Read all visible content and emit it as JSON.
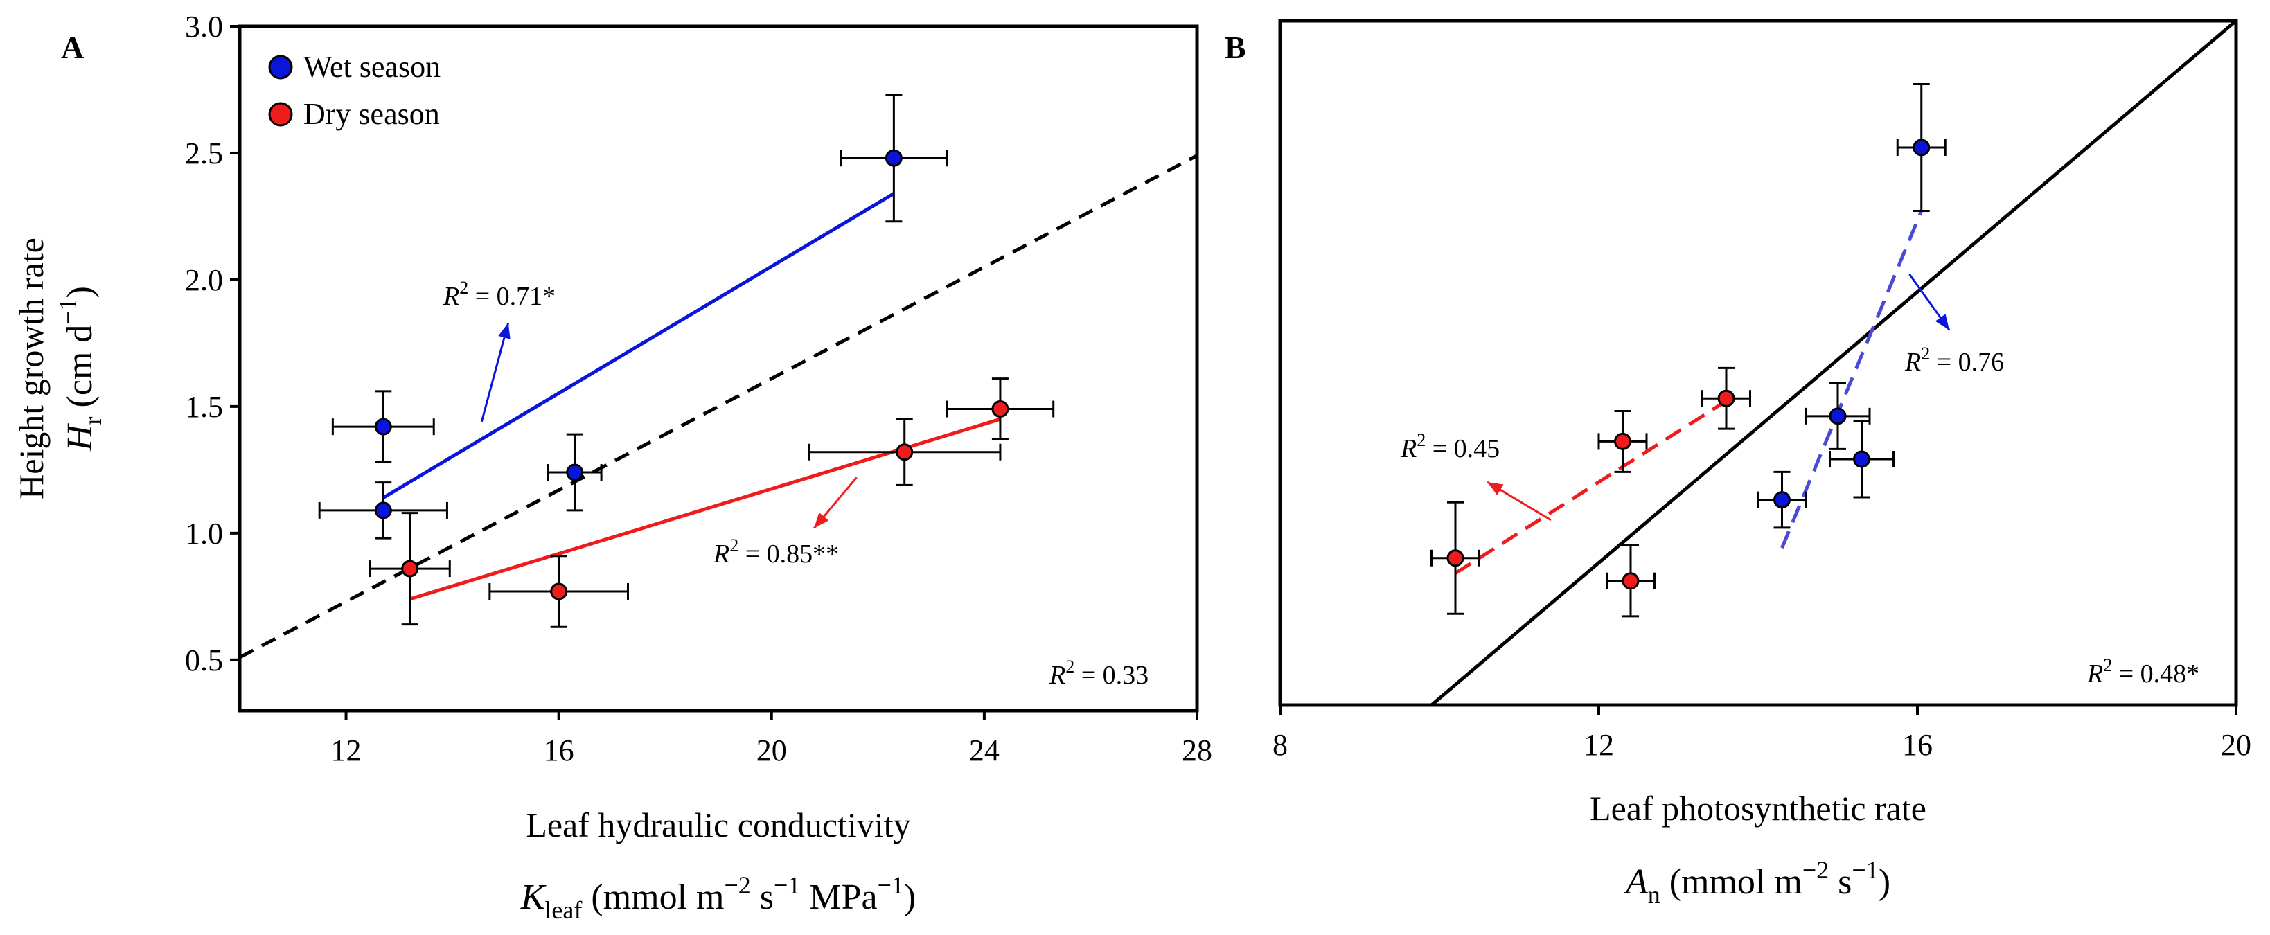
{
  "chart_data": [
    {
      "type": "scatter",
      "panel_label": "A",
      "title": "",
      "xlabel": "Leaf hydraulic conductivity",
      "xlabel_math": {
        "var": "K",
        "sub": "leaf",
        "units_open": " (mmol m",
        "exp1": "−2",
        "mid1": " s",
        "exp2": "−1",
        "mid2": " MPa",
        "exp3": "−1",
        "close": ")"
      },
      "ylabel": "Height growth rate",
      "ylabel_math": {
        "var": "H",
        "sub": "r",
        "units_open": " (cm d",
        "exp1": "−1",
        "close": ")"
      },
      "xlim": [
        10,
        28
      ],
      "ylim": [
        0.3,
        3.0
      ],
      "x_ticks": [
        12,
        16,
        20,
        24,
        28
      ],
      "x_tick_labels": [
        "12",
        "16",
        "20",
        "24",
        "28"
      ],
      "y_ticks": [
        0.5,
        1.0,
        1.5,
        2.0,
        2.5,
        3.0
      ],
      "y_tick_labels": [
        "0.5",
        "1.0",
        "1.5",
        "2.0",
        "2.5",
        "3.0"
      ],
      "legend": {
        "placement": "top-left",
        "entries": [
          {
            "label": "Wet season",
            "color": "#0b14d9"
          },
          {
            "label": "Dry season",
            "color": "#ee1c1c"
          }
        ]
      },
      "series": [
        {
          "name": "Wet season",
          "color": "#0b14d9",
          "points": [
            {
              "x": 22.3,
              "y": 2.48,
              "xerr": 1.0,
              "yerr": 0.25
            },
            {
              "x": 12.7,
              "y": 1.42,
              "xerr": 0.95,
              "yerr": 0.14
            },
            {
              "x": 12.7,
              "y": 1.09,
              "xerr": 1.2,
              "yerr": 0.11
            },
            {
              "x": 16.3,
              "y": 1.24,
              "xerr": 0.5,
              "yerr": 0.15
            }
          ],
          "fit": {
            "x": [
              12.7,
              22.3
            ],
            "y": [
              1.14,
              2.34
            ],
            "style": "solid",
            "color": "#0b14d9"
          }
        },
        {
          "name": "Dry season",
          "color": "#ee1c1c",
          "points": [
            {
              "x": 24.3,
              "y": 1.49,
              "xerr": 1.0,
              "yerr": 0.12
            },
            {
              "x": 22.5,
              "y": 1.32,
              "xerr": 1.8,
              "yerr": 0.13
            },
            {
              "x": 13.2,
              "y": 0.86,
              "xerr": 0.75,
              "yerr": 0.22
            },
            {
              "x": 16.0,
              "y": 0.77,
              "xerr": 1.3,
              "yerr": 0.14
            }
          ],
          "fit": {
            "x": [
              13.2,
              24.3
            ],
            "y": [
              0.74,
              1.45
            ],
            "style": "solid",
            "color": "#ee1c1c"
          }
        }
      ],
      "overall_fit": {
        "x": [
          10,
          28
        ],
        "y": [
          0.51,
          2.49
        ],
        "style": "dashed",
        "color": "#000000"
      },
      "annotations": [
        {
          "var": "R",
          "exp": "2",
          "rest": " = 0.71*",
          "x": 15.0,
          "y": 1.9,
          "color": "#0b14d9",
          "arrow": {
            "from": [
              14.55,
              1.44
            ],
            "to": [
              15.05,
              1.83
            ]
          }
        },
        {
          "var": "R",
          "exp": "2",
          "rest": " = 0.85**",
          "x": 22.0,
          "y": 0.88,
          "color": "#ee1c1c",
          "arrow": {
            "from": [
              21.6,
              1.22
            ],
            "to": [
              20.8,
              1.02
            ]
          }
        },
        {
          "var": "R",
          "exp": "2",
          "rest": " = 0.33",
          "placement": "bottom-right",
          "color": "#000000"
        }
      ]
    },
    {
      "type": "scatter",
      "panel_label": "B",
      "title": "",
      "xlabel": "Leaf photosynthetic rate",
      "xlabel_math": {
        "var": "A",
        "sub": "n",
        "units_open": " (mmol m",
        "exp1": "−2",
        "mid1": " s",
        "exp2": "−1",
        "close": ")"
      },
      "ylabel": "",
      "xlim": [
        8,
        20
      ],
      "ylim": [
        0.3,
        3.0
      ],
      "x_ticks": [
        8,
        12,
        16,
        20
      ],
      "x_tick_labels": [
        "8",
        "12",
        "16",
        "20"
      ],
      "y_ticks": [],
      "series": [
        {
          "name": "Wet season",
          "color": "#0b14d9",
          "points": [
            {
              "x": 16.05,
              "y": 2.5,
              "xerr": 0.3,
              "yerr": 0.25
            },
            {
              "x": 15.0,
              "y": 1.44,
              "xerr": 0.4,
              "yerr": 0.13
            },
            {
              "x": 15.3,
              "y": 1.27,
              "xerr": 0.4,
              "yerr": 0.15
            },
            {
              "x": 14.3,
              "y": 1.11,
              "xerr": 0.3,
              "yerr": 0.11
            }
          ],
          "fit": {
            "x": [
              14.3,
              16.05
            ],
            "y": [
              0.92,
              2.25
            ],
            "style": "dashed",
            "color": "#4a4ad8"
          }
        },
        {
          "name": "Dry season",
          "color": "#ee1c1c",
          "points": [
            {
              "x": 13.6,
              "y": 1.51,
              "xerr": 0.3,
              "yerr": 0.12
            },
            {
              "x": 12.3,
              "y": 1.34,
              "xerr": 0.3,
              "yerr": 0.12
            },
            {
              "x": 10.2,
              "y": 0.88,
              "xerr": 0.3,
              "yerr": 0.22
            },
            {
              "x": 12.4,
              "y": 0.79,
              "xerr": 0.3,
              "yerr": 0.14
            }
          ],
          "fit": {
            "x": [
              10.2,
              13.6
            ],
            "y": [
              0.82,
              1.5
            ],
            "style": "dashed",
            "color": "#ee1c1c"
          }
        }
      ],
      "overall_fit": {
        "x": [
          9.9,
          20
        ],
        "y": [
          0.3,
          3.0
        ],
        "style": "solid",
        "color": "#000000"
      },
      "annotations": [
        {
          "var": "R",
          "exp": "2",
          "rest": " = 0.45",
          "x": 10.8,
          "y": 1.29,
          "color": "#ee1c1c",
          "arrow": {
            "from": [
              11.4,
              1.03
            ],
            "to": [
              10.6,
              1.18
            ]
          }
        },
        {
          "var": "R",
          "exp": "2",
          "rest": " = 0.76",
          "x": 16.5,
          "y": 1.76,
          "color": "#0b14d9",
          "arrow": {
            "from": [
              15.9,
              2.0
            ],
            "to": [
              16.4,
              1.78
            ]
          }
        },
        {
          "var": "R",
          "exp": "2",
          "rest": " = 0.48*",
          "placement": "bottom-right",
          "color": "#000000"
        }
      ]
    }
  ]
}
